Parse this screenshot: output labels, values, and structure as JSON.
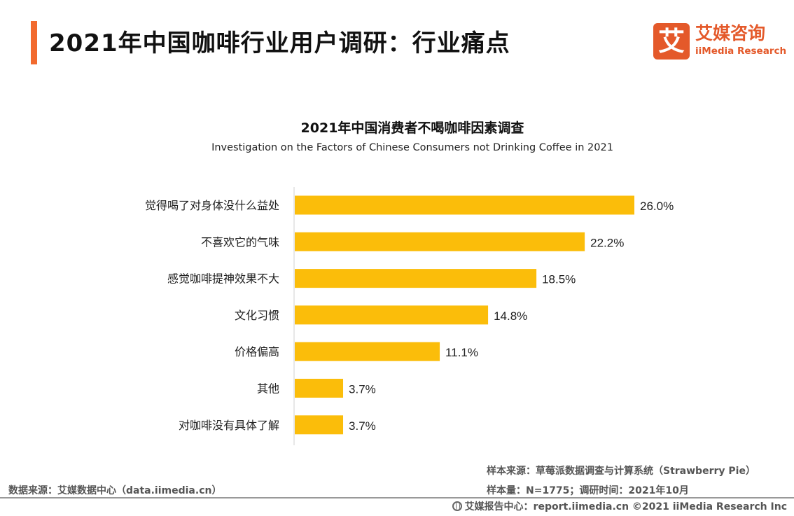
{
  "header": {
    "title": "2021年中国咖啡行业用户调研：行业痛点",
    "accent_color": "#f26a2e"
  },
  "logo": {
    "mark": "艾",
    "name_cn": "艾媒咨询",
    "name_en": "iiMedia Research",
    "color": "#e4592a"
  },
  "chart_data": {
    "type": "bar",
    "orientation": "horizontal",
    "title": "2021年中国消费者不喝咖啡因素调查",
    "subtitle": "Investigation on the Factors of Chinese Consumers not Drinking Coffee in 2021",
    "categories": [
      "觉得喝了对身体没什么益处",
      "不喜欢它的气味",
      "感觉咖啡提神效果不大",
      "文化习惯",
      "价格偏高",
      "其他",
      "对咖啡没有具体了解"
    ],
    "values": [
      26.0,
      22.2,
      18.5,
      14.8,
      11.1,
      3.7,
      3.7
    ],
    "data_labels": [
      "26.0%",
      "22.2%",
      "18.5%",
      "14.8%",
      "11.1%",
      "3.7%",
      "3.7%"
    ],
    "unit": "%",
    "xlim": [
      0,
      28
    ],
    "bar_color": "#fbbd0a",
    "grid": false,
    "legend": "none"
  },
  "footer": {
    "sample_source": "样本来源：草莓派数据调查与计算系统（Strawberry Pie）",
    "sample_size": "样本量：N=1775；调研时间：2021年10月",
    "data_source": "数据来源：艾媒数据中心（data.iimedia.cn）",
    "copyright": "艾媒报告中心：report.iimedia.cn   ©2021  iiMedia Research  Inc"
  }
}
